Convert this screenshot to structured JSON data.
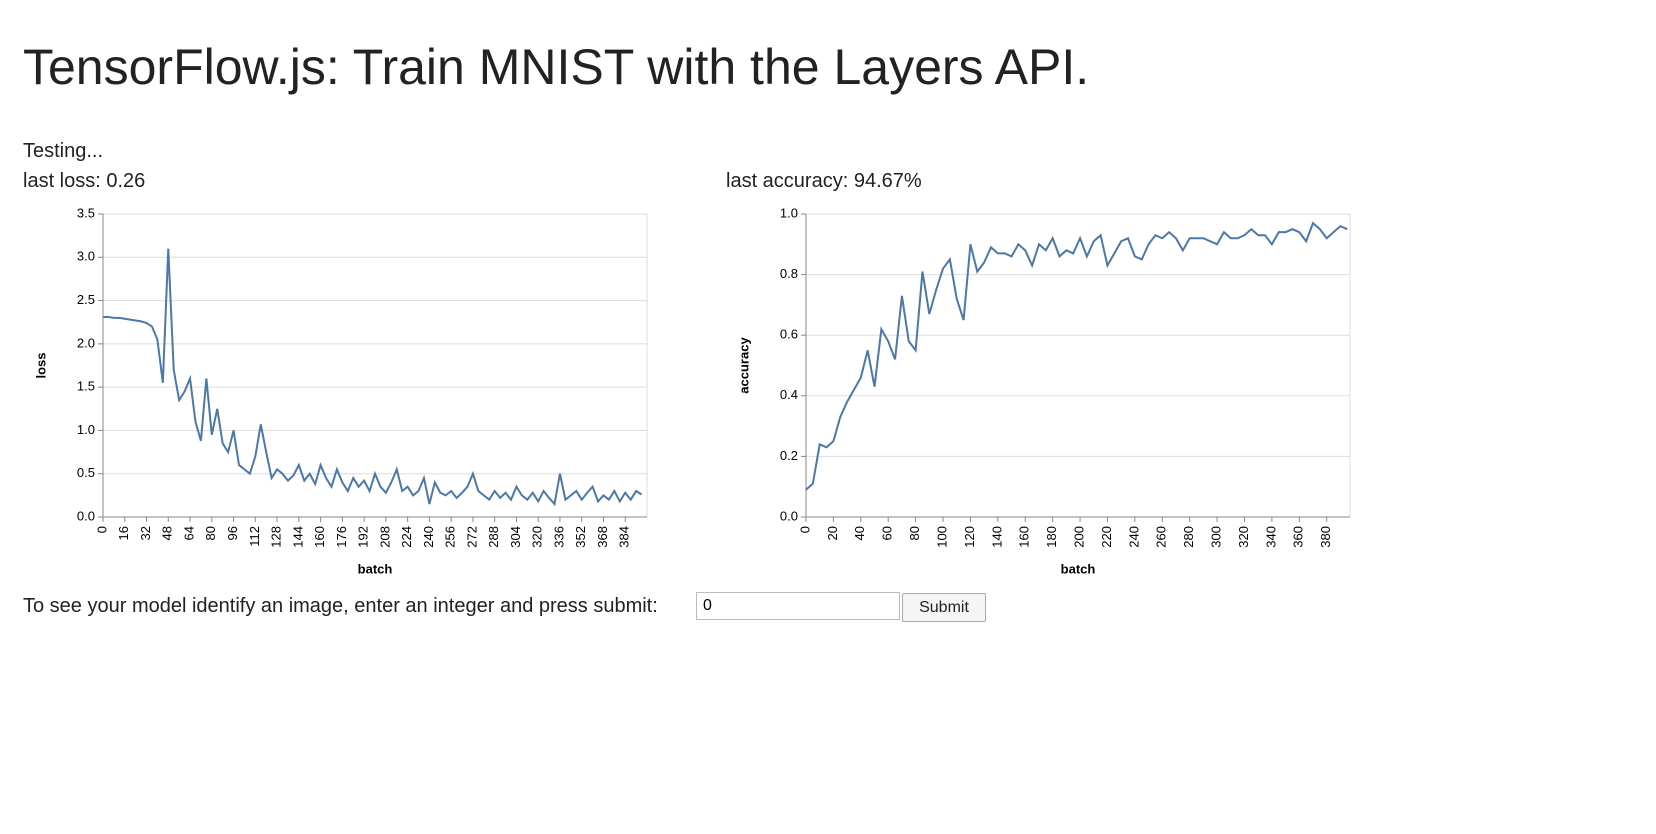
{
  "title": "TensorFlow.js: Train MNIST with the Layers API.",
  "status": "Testing...",
  "last_loss": "last loss: 0.26",
  "last_accuracy": "last accuracy: 94.67%",
  "prompt": "To see your model identify an image, enter an integer and press submit:",
  "input_value": "0",
  "button": "Submit",
  "chart_data": [
    {
      "type": "line",
      "x_label": "batch",
      "y_label": "loss",
      "color": "#4c78a8",
      "grid": true,
      "xlim": [
        0,
        400
      ],
      "ylim": [
        0,
        3.5
      ],
      "xticks": [
        0,
        16,
        32,
        48,
        64,
        80,
        96,
        112,
        128,
        144,
        160,
        176,
        192,
        208,
        224,
        240,
        256,
        272,
        288,
        304,
        320,
        336,
        352,
        368,
        384
      ],
      "yticks": [
        {
          "value": 0,
          "label": "0.0"
        },
        0.5,
        {
          "value": 1,
          "label": "1.0"
        },
        1.5,
        {
          "value": 2,
          "label": "2.0"
        },
        2.5,
        {
          "value": 3,
          "label": "3.0"
        },
        3.5
      ],
      "x": [
        0,
        4,
        8,
        12,
        16,
        20,
        24,
        28,
        32,
        36,
        40,
        44,
        48,
        52,
        56,
        60,
        64,
        68,
        72,
        76,
        80,
        84,
        88,
        92,
        96,
        100,
        104,
        108,
        112,
        116,
        120,
        124,
        128,
        132,
        136,
        140,
        144,
        148,
        152,
        156,
        160,
        164,
        168,
        172,
        176,
        180,
        184,
        188,
        192,
        196,
        200,
        204,
        208,
        212,
        216,
        220,
        224,
        228,
        232,
        236,
        240,
        244,
        248,
        252,
        256,
        260,
        264,
        268,
        272,
        276,
        280,
        284,
        288,
        292,
        296,
        300,
        304,
        308,
        312,
        316,
        320,
        324,
        328,
        332,
        336,
        340,
        344,
        348,
        352,
        356,
        360,
        364,
        368,
        372,
        376,
        380,
        384,
        388,
        392,
        396
      ],
      "values": [
        2.31,
        2.31,
        2.3,
        2.3,
        2.29,
        2.28,
        2.27,
        2.26,
        2.24,
        2.2,
        2.05,
        1.55,
        3.1,
        1.7,
        1.35,
        1.45,
        1.6,
        1.1,
        0.88,
        1.6,
        0.95,
        1.25,
        0.85,
        0.75,
        1.0,
        0.6,
        0.55,
        0.5,
        0.7,
        1.07,
        0.75,
        0.45,
        0.55,
        0.5,
        0.42,
        0.48,
        0.6,
        0.42,
        0.5,
        0.38,
        0.6,
        0.45,
        0.35,
        0.55,
        0.4,
        0.3,
        0.45,
        0.35,
        0.42,
        0.3,
        0.5,
        0.35,
        0.28,
        0.4,
        0.55,
        0.3,
        0.35,
        0.25,
        0.3,
        0.45,
        0.15,
        0.4,
        0.28,
        0.25,
        0.3,
        0.22,
        0.28,
        0.35,
        0.5,
        0.3,
        0.25,
        0.2,
        0.3,
        0.22,
        0.28,
        0.2,
        0.35,
        0.25,
        0.2,
        0.28,
        0.18,
        0.3,
        0.22,
        0.15,
        0.5,
        0.2,
        0.25,
        0.3,
        0.2,
        0.28,
        0.35,
        0.18,
        0.25,
        0.2,
        0.3,
        0.18,
        0.28,
        0.2,
        0.3,
        0.26
      ]
    },
    {
      "type": "line",
      "x_label": "batch",
      "y_label": "accuracy",
      "color": "#4c78a8",
      "grid": true,
      "xlim": [
        0,
        397
      ],
      "ylim": [
        0,
        1
      ],
      "xticks": [
        0,
        20,
        40,
        60,
        80,
        100,
        120,
        140,
        160,
        180,
        200,
        220,
        240,
        260,
        280,
        300,
        320,
        340,
        360,
        380
      ],
      "yticks": [
        {
          "value": 0,
          "label": "0.0"
        },
        0.2,
        0.4,
        0.6,
        0.8,
        {
          "value": 1,
          "label": "1.0"
        }
      ],
      "x": [
        0,
        5,
        10,
        15,
        20,
        25,
        30,
        35,
        40,
        45,
        50,
        55,
        60,
        65,
        70,
        75,
        80,
        85,
        90,
        95,
        100,
        105,
        110,
        115,
        120,
        125,
        130,
        135,
        140,
        145,
        150,
        155,
        160,
        165,
        170,
        175,
        180,
        185,
        190,
        195,
        200,
        205,
        210,
        215,
        220,
        225,
        230,
        235,
        240,
        245,
        250,
        255,
        260,
        265,
        270,
        275,
        280,
        285,
        290,
        295,
        300,
        305,
        310,
        315,
        320,
        325,
        330,
        335,
        340,
        345,
        350,
        355,
        360,
        365,
        370,
        375,
        380,
        385,
        390,
        395
      ],
      "values": [
        0.09,
        0.11,
        0.24,
        0.23,
        0.25,
        0.33,
        0.38,
        0.42,
        0.46,
        0.55,
        0.43,
        0.62,
        0.58,
        0.52,
        0.73,
        0.58,
        0.55,
        0.81,
        0.67,
        0.75,
        0.82,
        0.85,
        0.72,
        0.65,
        0.9,
        0.81,
        0.84,
        0.89,
        0.87,
        0.87,
        0.86,
        0.9,
        0.88,
        0.83,
        0.9,
        0.88,
        0.92,
        0.86,
        0.88,
        0.87,
        0.92,
        0.86,
        0.91,
        0.93,
        0.83,
        0.87,
        0.91,
        0.92,
        0.86,
        0.85,
        0.9,
        0.93,
        0.92,
        0.94,
        0.92,
        0.88,
        0.92,
        0.92,
        0.92,
        0.91,
        0.9,
        0.94,
        0.92,
        0.92,
        0.93,
        0.95,
        0.93,
        0.93,
        0.9,
        0.94,
        0.94,
        0.95,
        0.94,
        0.91,
        0.97,
        0.95,
        0.92,
        0.94,
        0.96,
        0.95
      ]
    }
  ]
}
